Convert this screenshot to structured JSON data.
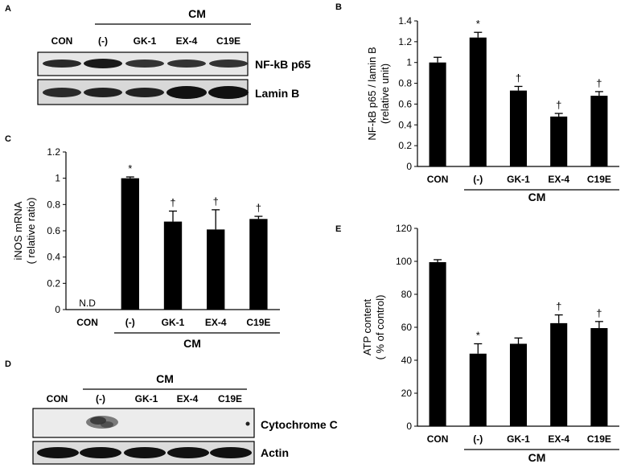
{
  "panels": {
    "A": {
      "label": "A",
      "group_label": "CM",
      "lanes": [
        "CON",
        "(-)",
        "GK-1",
        "EX-4",
        "C19E"
      ],
      "bands": [
        "NF-kB p65",
        "Lamin B"
      ]
    },
    "D": {
      "label": "D",
      "group_label": "CM",
      "lanes": [
        "CON",
        "(-)",
        "GK-1",
        "EX-4",
        "C19E"
      ],
      "bands": [
        "Cytochrome C",
        "Actin"
      ]
    }
  },
  "chart_data": [
    {
      "panel": "B",
      "type": "bar",
      "categories": [
        "CON",
        "(-)",
        "GK-1",
        "EX-4",
        "C19E"
      ],
      "values": [
        1.0,
        1.24,
        0.73,
        0.48,
        0.68
      ],
      "errors": [
        0.05,
        0.05,
        0.04,
        0.03,
        0.04
      ],
      "marks": [
        "",
        "*",
        "†",
        "†",
        "†"
      ],
      "group_label": "CM",
      "ylabel_lines": [
        "NF-kB p65 / lamin B",
        "(relative unit)"
      ],
      "ylim": [
        0,
        1.4
      ],
      "yticks": [
        "0",
        "0.2",
        "0.4",
        "0.6",
        "0.8",
        "1",
        "1.2",
        "1.4"
      ],
      "bar_color": "#000000"
    },
    {
      "panel": "C",
      "type": "bar",
      "categories": [
        "CON",
        "(-)",
        "GK-1",
        "EX-4",
        "C19E"
      ],
      "values": [
        0,
        1.0,
        0.67,
        0.61,
        0.69
      ],
      "errors": [
        0,
        0.01,
        0.08,
        0.15,
        0.02
      ],
      "marks": [
        "",
        "*",
        "†",
        "†",
        "†"
      ],
      "value_labels": [
        "N.D",
        "",
        "",
        "",
        ""
      ],
      "group_label": "CM",
      "ylabel_lines": [
        "iNOS mRNA",
        "( relative ratio)"
      ],
      "ylim": [
        0,
        1.2
      ],
      "yticks": [
        "0",
        "0.2",
        "0.4",
        "0.6",
        "0.8",
        "1",
        "1.2"
      ],
      "bar_color": "#000000"
    },
    {
      "panel": "E",
      "type": "bar",
      "categories": [
        "CON",
        "(-)",
        "GK-1",
        "EX-4",
        "C19E"
      ],
      "values": [
        99.5,
        44,
        50,
        62.5,
        59.5
      ],
      "errors": [
        1.5,
        6,
        3.5,
        5,
        4
      ],
      "marks": [
        "",
        "*",
        "",
        "†",
        "†"
      ],
      "group_label": "CM",
      "ylabel_lines": [
        "ATP content",
        "( % of control)"
      ],
      "ylim": [
        0,
        120
      ],
      "yticks": [
        "0",
        "20",
        "40",
        "60",
        "80",
        "100",
        "120"
      ],
      "bar_color": "#000000"
    }
  ]
}
